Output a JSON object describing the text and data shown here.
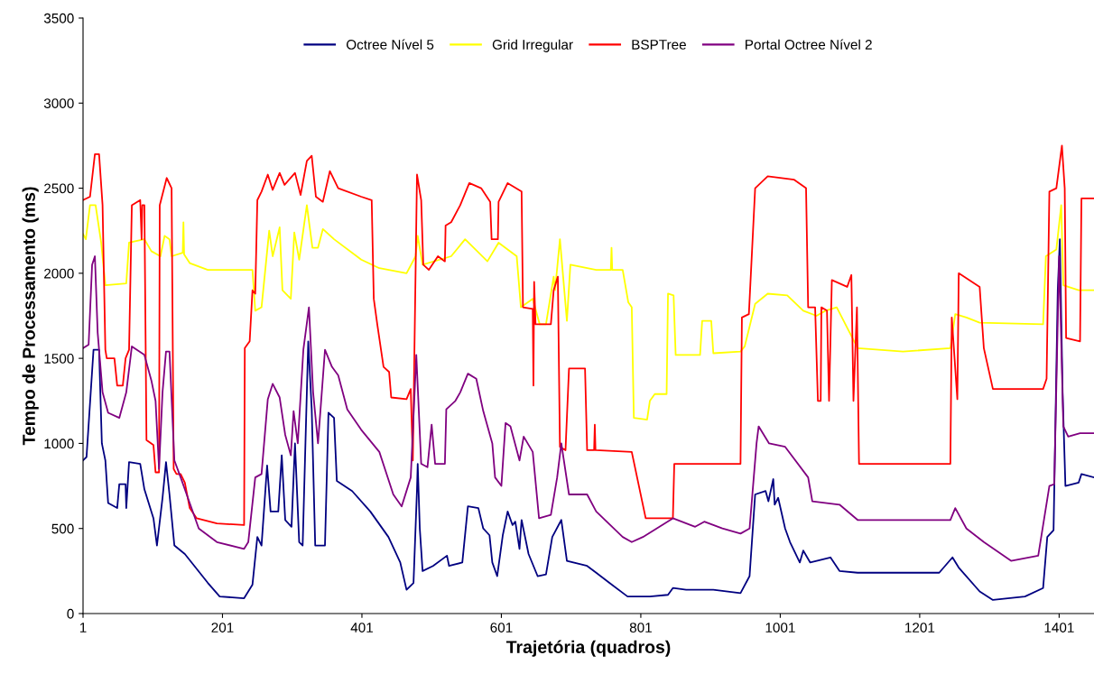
{
  "chart_data": {
    "type": "line",
    "xlabel": "Trajetória (quadros)",
    "ylabel": "Tempo de Processamento (ms)",
    "xlim": [
      1,
      1451
    ],
    "ylim": [
      0,
      3500
    ],
    "xticks": [
      1,
      201,
      401,
      601,
      801,
      1001,
      1201,
      1401
    ],
    "yticks": [
      0,
      500,
      1000,
      1500,
      2000,
      2500,
      3000,
      3500
    ],
    "grid": false,
    "legend": "top",
    "marker": "none",
    "line_style": "solid",
    "series": [
      {
        "name": "Octree Nível 5",
        "color": "#000080",
        "x": [
          1,
          6,
          16,
          24,
          28,
          33,
          37,
          50,
          53,
          62,
          63,
          67,
          83,
          89,
          102,
          107,
          115,
          120,
          125,
          132,
          147,
          180,
          197,
          232,
          244,
          251,
          257,
          265,
          270,
          281,
          286,
          291,
          300,
          305,
          311,
          316,
          324,
          329,
          334,
          348,
          353,
          361,
          365,
          387,
          413,
          439,
          456,
          465,
          475,
          480,
          481,
          484,
          488,
          503,
          523,
          526,
          545,
          553,
          568,
          575,
          584,
          588,
          595,
          603,
          610,
          617,
          621,
          627,
          630,
          640,
          653,
          665,
          674,
          687,
          695,
          724,
          737,
          756,
          782,
          814,
          840,
          847,
          866,
          905,
          944,
          957,
          965,
          980,
          984,
          991,
          993,
          998,
          1008,
          1015,
          1029,
          1034,
          1044,
          1073,
          1086,
          1112,
          1229,
          1248,
          1257,
          1287,
          1306,
          1352,
          1378,
          1384,
          1393,
          1399,
          1402,
          1406,
          1410,
          1429,
          1433,
          1451
        ],
        "values": [
          900,
          920,
          1550,
          1550,
          1000,
          900,
          650,
          620,
          760,
          760,
          620,
          890,
          880,
          730,
          560,
          400,
          680,
          890,
          700,
          400,
          350,
          180,
          100,
          90,
          170,
          450,
          400,
          870,
          600,
          600,
          930,
          550,
          510,
          1000,
          420,
          400,
          1600,
          1200,
          400,
          400,
          1180,
          1150,
          780,
          720,
          600,
          450,
          300,
          140,
          180,
          730,
          880,
          500,
          250,
          280,
          340,
          280,
          300,
          630,
          620,
          500,
          460,
          300,
          220,
          460,
          600,
          520,
          540,
          380,
          550,
          350,
          220,
          230,
          450,
          550,
          310,
          280,
          240,
          180,
          100,
          100,
          110,
          150,
          140,
          140,
          120,
          220,
          700,
          720,
          660,
          790,
          640,
          680,
          500,
          420,
          300,
          370,
          300,
          330,
          250,
          240,
          240,
          330,
          270,
          130,
          80,
          100,
          150,
          450,
          490,
          1900,
          2200,
          1300,
          750,
          770,
          820,
          800
        ]
      },
      {
        "name": "Grid Irregular",
        "color": "#ffff00",
        "x": [
          1,
          5,
          11,
          19,
          27,
          33,
          63,
          67,
          89,
          99,
          112,
          118,
          125,
          128,
          144,
          145,
          146,
          154,
          180,
          244,
          248,
          257,
          268,
          273,
          283,
          287,
          299,
          304,
          311,
          322,
          330,
          338,
          345,
          361,
          400,
          426,
          465,
          478,
          481,
          488,
          529,
          549,
          581,
          597,
          623,
          629,
          646,
          656,
          665,
          676,
          678,
          685,
          695,
          700,
          737,
          758,
          759,
          760,
          775,
          783,
          788,
          791,
          810,
          814,
          821,
          838,
          840,
          848,
          851,
          886,
          889,
          902,
          905,
          944,
          950,
          965,
          983,
          1011,
          1034,
          1053,
          1066,
          1082,
          1112,
          1177,
          1245,
          1252,
          1268,
          1287,
          1378,
          1382,
          1397,
          1404,
          1407,
          1429,
          1451
        ],
        "values": [
          2230,
          2200,
          2400,
          2400,
          2180,
          1930,
          1940,
          2180,
          2200,
          2130,
          2100,
          2220,
          2200,
          2100,
          2120,
          2300,
          2110,
          2060,
          2020,
          2020,
          1780,
          1800,
          2250,
          2100,
          2270,
          1900,
          1850,
          2240,
          2080,
          2400,
          2150,
          2150,
          2260,
          2200,
          2080,
          2030,
          2000,
          2100,
          2220,
          2050,
          2100,
          2200,
          2070,
          2180,
          2100,
          1800,
          1850,
          1700,
          1700,
          1980,
          1900,
          2200,
          1720,
          2050,
          2020,
          2020,
          2150,
          2020,
          2020,
          1830,
          1800,
          1150,
          1140,
          1250,
          1290,
          1290,
          1880,
          1870,
          1520,
          1520,
          1720,
          1720,
          1530,
          1540,
          1570,
          1820,
          1880,
          1870,
          1780,
          1750,
          1780,
          1800,
          1560,
          1540,
          1560,
          1760,
          1740,
          1710,
          1700,
          2100,
          2140,
          2400,
          1930,
          1900,
          1900
        ]
      },
      {
        "name": "BSPTree",
        "color": "#ff0000",
        "x": [
          1,
          11,
          18,
          24,
          29,
          33,
          35,
          46,
          50,
          58,
          62,
          67,
          71,
          83,
          85,
          86,
          89,
          92,
          102,
          105,
          110,
          111,
          121,
          128,
          131,
          135,
          141,
          147,
          154,
          164,
          193,
          232,
          233,
          240,
          244,
          248,
          251,
          257,
          266,
          273,
          283,
          290,
          305,
          313,
          322,
          329,
          335,
          345,
          355,
          367,
          400,
          415,
          418,
          423,
          432,
          440,
          443,
          465,
          471,
          474,
          480,
          486,
          489,
          497,
          510,
          520,
          521,
          529,
          542,
          555,
          572,
          585,
          587,
          596,
          597,
          610,
          630,
          632,
          646,
          647,
          648,
          650,
          672,
          676,
          682,
          685,
          693,
          698,
          721,
          724,
          734,
          735,
          736,
          788,
          808,
          847,
          849,
          944,
          946,
          956,
          965,
          983,
          1021,
          1038,
          1041,
          1051,
          1055,
          1059,
          1060,
          1068,
          1071,
          1075,
          1097,
          1103,
          1106,
          1111,
          1114,
          1245,
          1247,
          1255,
          1257,
          1287,
          1293,
          1306,
          1378,
          1383,
          1387,
          1397,
          1405,
          1409,
          1411,
          1431,
          1433,
          1451
        ],
        "values": [
          2430,
          2450,
          2700,
          2700,
          2400,
          1550,
          1500,
          1500,
          1340,
          1340,
          1500,
          1550,
          2400,
          2430,
          2200,
          2400,
          2400,
          1020,
          990,
          830,
          830,
          2400,
          2560,
          2500,
          850,
          820,
          820,
          770,
          620,
          560,
          530,
          520,
          1560,
          1600,
          1900,
          1880,
          2430,
          2480,
          2580,
          2490,
          2590,
          2520,
          2590,
          2460,
          2660,
          2690,
          2450,
          2420,
          2600,
          2500,
          2450,
          2430,
          1850,
          1700,
          1450,
          1420,
          1270,
          1260,
          1320,
          900,
          2580,
          2430,
          2050,
          2020,
          2100,
          2070,
          2280,
          2300,
          2400,
          2530,
          2500,
          2420,
          2200,
          2200,
          2420,
          2530,
          2480,
          1800,
          1790,
          1340,
          1950,
          1700,
          1700,
          1900,
          1980,
          980,
          960,
          1440,
          1440,
          960,
          960,
          1110,
          960,
          950,
          560,
          560,
          880,
          880,
          1740,
          1760,
          2500,
          2570,
          2550,
          2500,
          1800,
          1800,
          1250,
          1250,
          1800,
          1780,
          1250,
          1960,
          1920,
          1990,
          1250,
          1800,
          880,
          880,
          1740,
          1260,
          2000,
          1920,
          1560,
          1320,
          1320,
          1380,
          2480,
          2500,
          2750,
          2500,
          1620,
          1600,
          2440,
          2440
        ]
      },
      {
        "name": "Portal Octree Nível 2",
        "color": "#800080",
        "x": [
          1,
          9,
          14,
          18,
          22,
          29,
          37,
          53,
          63,
          71,
          89,
          99,
          105,
          110,
          115,
          120,
          125,
          132,
          141,
          154,
          167,
          193,
          232,
          238,
          248,
          257,
          266,
          273,
          283,
          291,
          299,
          303,
          309,
          317,
          325,
          331,
          338,
          348,
          358,
          367,
          380,
          400,
          426,
          446,
          458,
          471,
          479,
          486,
          495,
          501,
          506,
          520,
          522,
          535,
          542,
          553,
          565,
          575,
          588,
          592,
          601,
          607,
          614,
          627,
          633,
          646,
          655,
          672,
          681,
          687,
          698,
          724,
          737,
          775,
          788,
          804,
          847,
          879,
          892,
          918,
          944,
          957,
          963,
          967,
          970,
          985,
          1008,
          1041,
          1047,
          1086,
          1112,
          1245,
          1252,
          1268,
          1293,
          1332,
          1371,
          1387,
          1394,
          1401,
          1407,
          1414,
          1431,
          1451
        ],
        "values": [
          1560,
          1580,
          2050,
          2100,
          1650,
          1300,
          1180,
          1150,
          1300,
          1570,
          1520,
          1370,
          1250,
          850,
          1300,
          1540,
          1540,
          900,
          800,
          650,
          500,
          420,
          380,
          420,
          800,
          820,
          1260,
          1350,
          1270,
          1050,
          930,
          1190,
          1000,
          1550,
          1800,
          1300,
          1000,
          1550,
          1450,
          1400,
          1200,
          1080,
          950,
          700,
          630,
          800,
          1520,
          880,
          860,
          1110,
          880,
          880,
          1200,
          1250,
          1300,
          1410,
          1380,
          1190,
          1000,
          800,
          750,
          1120,
          1100,
          900,
          1040,
          950,
          560,
          580,
          800,
          1000,
          700,
          700,
          600,
          450,
          420,
          450,
          560,
          510,
          540,
          500,
          470,
          500,
          800,
          1000,
          1100,
          1000,
          980,
          800,
          660,
          640,
          550,
          550,
          620,
          500,
          420,
          310,
          340,
          750,
          760,
          2100,
          1100,
          1040,
          1060,
          1060
        ]
      }
    ]
  }
}
